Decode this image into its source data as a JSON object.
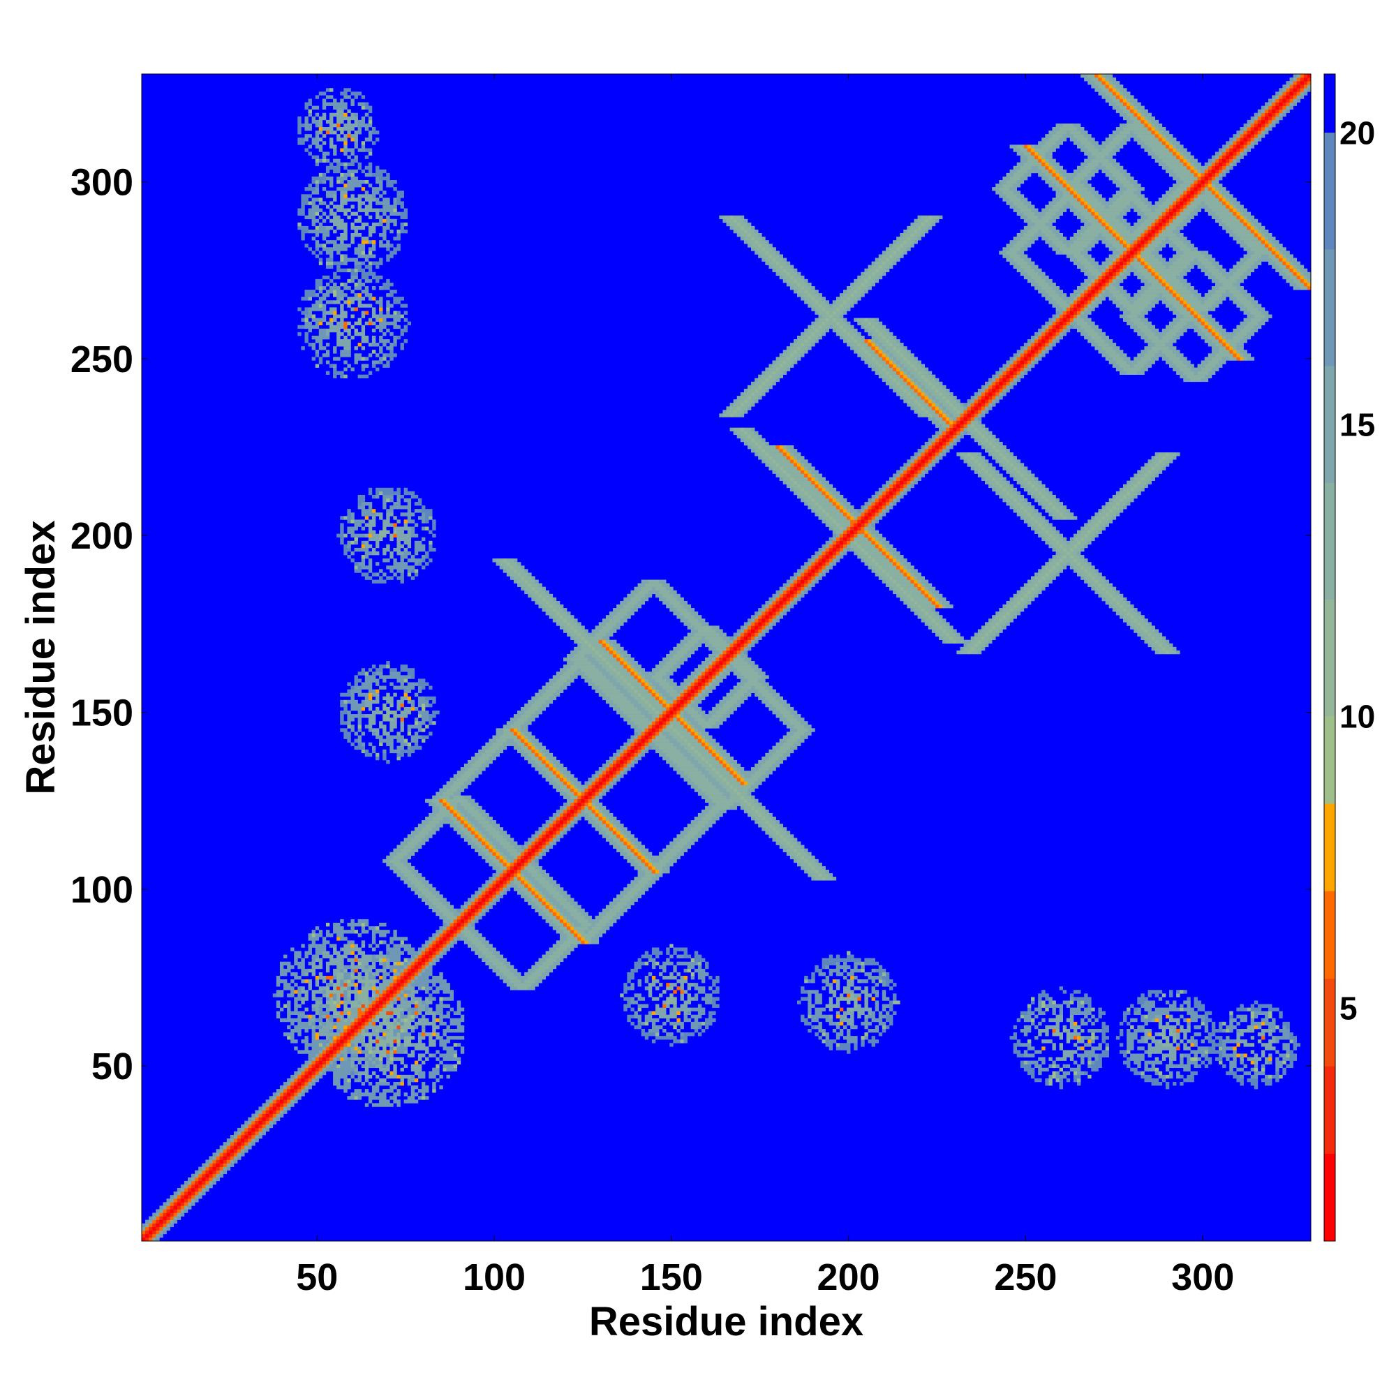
{
  "chart_data": {
    "type": "heatmap",
    "title": "",
    "xlabel": "Residue index",
    "ylabel": "Residue index",
    "xlim": [
      1,
      330
    ],
    "ylim": [
      1,
      330
    ],
    "xticks": [
      50,
      100,
      150,
      200,
      250,
      300
    ],
    "yticks": [
      50,
      100,
      150,
      200,
      250,
      300
    ],
    "colorbar": {
      "range": [
        1,
        21
      ],
      "ticks": [
        5,
        10,
        15,
        20
      ],
      "colors": [
        {
          "min": 1,
          "max": 2.5,
          "color": "#ff0000"
        },
        {
          "min": 2.5,
          "max": 4,
          "color": "#f52a0a"
        },
        {
          "min": 4,
          "max": 5.5,
          "color": "#f24b0d"
        },
        {
          "min": 5.5,
          "max": 7,
          "color": "#ff6a00"
        },
        {
          "min": 7,
          "max": 8.5,
          "color": "#ffa500"
        },
        {
          "min": 8.5,
          "max": 10,
          "color": "#9fbf8a"
        },
        {
          "min": 10,
          "max": 12,
          "color": "#93b798"
        },
        {
          "min": 12,
          "max": 14,
          "color": "#89b0a2"
        },
        {
          "min": 14,
          "max": 16,
          "color": "#7ea6ac"
        },
        {
          "min": 16,
          "max": 18,
          "color": "#6f98b6"
        },
        {
          "min": 18,
          "max": 20,
          "color": "#5e87bd"
        },
        {
          "min": 20,
          "max": 21,
          "color": "#0000ff"
        }
      ]
    },
    "background_color": "#0000ff",
    "description_data": {
      "diagonal": {
        "from": 1,
        "to": 330,
        "value": 3.8
      },
      "features": [
        {
          "kind": "diamond",
          "center": [
            160,
            160
          ],
          "half_diag": 14,
          "value": 12
        },
        {
          "kind": "diamond",
          "center": [
            125,
            145
          ],
          "half_diag": 20,
          "value": 12
        },
        {
          "kind": "diamond",
          "center": [
            145,
            125
          ],
          "half_diag": 20,
          "value": 12
        },
        {
          "kind": "diamond",
          "center": [
            105,
            125
          ],
          "half_diag": 20,
          "value": 12
        },
        {
          "kind": "diamond",
          "center": [
            125,
            105
          ],
          "half_diag": 20,
          "value": 12
        },
        {
          "kind": "diamond",
          "center": [
            90,
            108
          ],
          "half_diag": 18,
          "value": 12
        },
        {
          "kind": "diamond",
          "center": [
            108,
            90
          ],
          "half_diag": 18,
          "value": 12
        },
        {
          "kind": "diamond",
          "center": [
            165,
            145
          ],
          "half_diag": 22,
          "value": 12
        },
        {
          "kind": "diamond",
          "center": [
            145,
            165
          ],
          "half_diag": 22,
          "value": 12
        },
        {
          "kind": "diamond",
          "center": [
            280,
            280
          ],
          "half_diag": 16,
          "value": 12
        },
        {
          "kind": "diamond",
          "center": [
            262,
            298
          ],
          "half_diag": 18,
          "value": 12
        },
        {
          "kind": "diamond",
          "center": [
            298,
            262
          ],
          "half_diag": 18,
          "value": 12
        },
        {
          "kind": "diamond",
          "center": [
            280,
            300
          ],
          "half_diag": 16,
          "value": 12
        },
        {
          "kind": "diamond",
          "center": [
            300,
            280
          ],
          "half_diag": 16,
          "value": 12
        },
        {
          "kind": "diamond",
          "center": [
            262,
            280
          ],
          "half_diag": 16,
          "value": 12
        },
        {
          "kind": "diamond",
          "center": [
            280,
            262
          ],
          "half_diag": 16,
          "value": 12
        },
        {
          "kind": "cross",
          "center": [
            200,
            200
          ],
          "arm": 30,
          "value": 11
        },
        {
          "kind": "cross",
          "center": [
            233,
            233
          ],
          "arm": 28,
          "value": 11
        },
        {
          "kind": "cross",
          "center": [
            262,
            195
          ],
          "arm": 28,
          "value": 11
        },
        {
          "kind": "cross",
          "center": [
            195,
            262
          ],
          "arm": 28,
          "value": 11
        },
        {
          "kind": "cross",
          "center": [
            148,
            148
          ],
          "arm": 45,
          "value": 11
        },
        {
          "kind": "antidiag",
          "start": [
            205,
            255
          ],
          "end": [
            230,
            230
          ],
          "value": 6
        },
        {
          "kind": "antidiag",
          "start": [
            180,
            225
          ],
          "end": [
            225,
            180
          ],
          "value": 6
        },
        {
          "kind": "antidiag",
          "start": [
            130,
            170
          ],
          "end": [
            170,
            130
          ],
          "value": 6
        },
        {
          "kind": "antidiag",
          "start": [
            105,
            145
          ],
          "end": [
            145,
            105
          ],
          "value": 6
        },
        {
          "kind": "antidiag",
          "start": [
            85,
            125
          ],
          "end": [
            125,
            85
          ],
          "value": 6
        },
        {
          "kind": "antidiag",
          "start": [
            250,
            310
          ],
          "end": [
            310,
            250
          ],
          "value": 6
        },
        {
          "kind": "antidiag",
          "start": [
            270,
            330
          ],
          "end": [
            330,
            270
          ],
          "value": 6
        },
        {
          "kind": "cluster",
          "center": [
            60,
            70
          ],
          "radius": 22,
          "value": 12
        },
        {
          "kind": "cluster",
          "center": [
            70,
            60
          ],
          "radius": 22,
          "value": 12
        },
        {
          "kind": "cluster",
          "center": [
            60,
            290
          ],
          "radius": 16,
          "value": 13
        },
        {
          "kind": "cluster",
          "center": [
            60,
            260
          ],
          "radius": 16,
          "value": 13
        },
        {
          "kind": "cluster",
          "center": [
            290,
            58
          ],
          "radius": 14,
          "value": 13
        },
        {
          "kind": "cluster",
          "center": [
            260,
            58
          ],
          "radius": 14,
          "value": 13
        },
        {
          "kind": "cluster",
          "center": [
            70,
            200
          ],
          "radius": 14,
          "value": 13
        },
        {
          "kind": "cluster",
          "center": [
            200,
            68
          ],
          "radius": 14,
          "value": 13
        },
        {
          "kind": "cluster",
          "center": [
            150,
            70
          ],
          "radius": 14,
          "value": 13
        },
        {
          "kind": "cluster",
          "center": [
            70,
            150
          ],
          "radius": 14,
          "value": 13
        },
        {
          "kind": "cluster",
          "center": [
            315,
            56
          ],
          "radius": 12,
          "value": 13
        },
        {
          "kind": "cluster",
          "center": [
            56,
            315
          ],
          "radius": 12,
          "value": 13
        }
      ]
    }
  }
}
